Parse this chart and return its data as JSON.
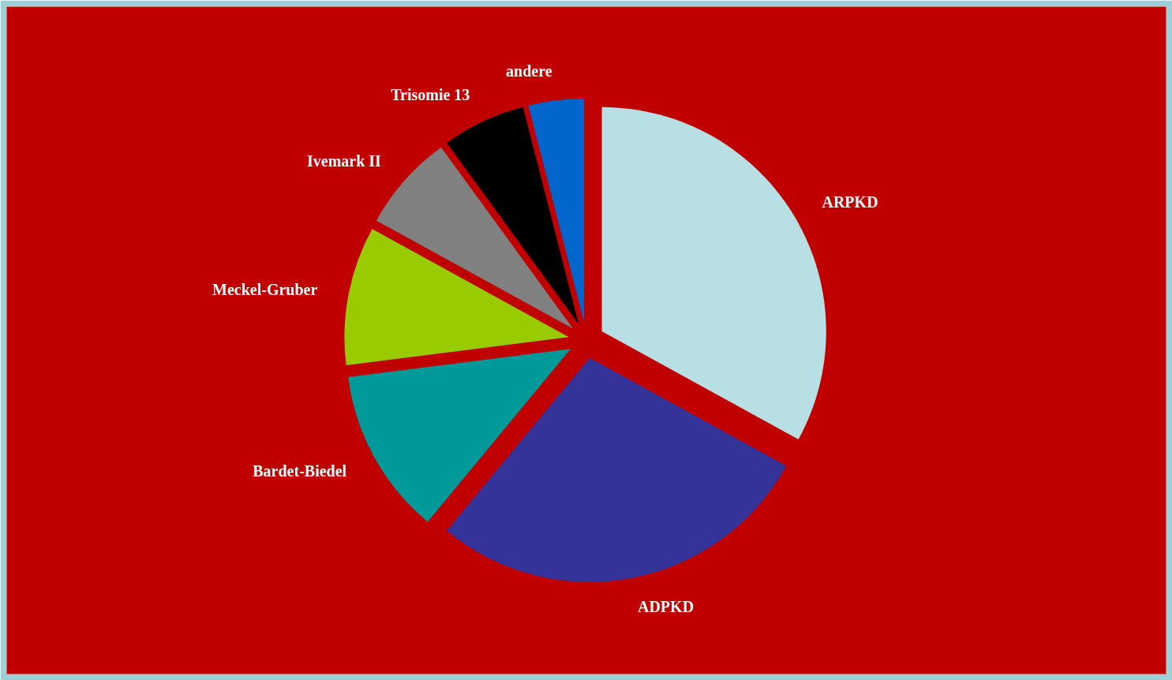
{
  "chart_data": {
    "type": "pie",
    "categories": [
      "ARPKD",
      "ADPKD",
      "Bardet-Biedel",
      "Meckel-Gruber",
      "Ivemark II",
      "Trisomie 13",
      "andere"
    ],
    "values": [
      33,
      28,
      12,
      10,
      7,
      6,
      4
    ],
    "colors": [
      "#b8dfe3",
      "#333399",
      "#009999",
      "#99cc00",
      "#808080",
      "#000000",
      "#0066cc"
    ]
  }
}
